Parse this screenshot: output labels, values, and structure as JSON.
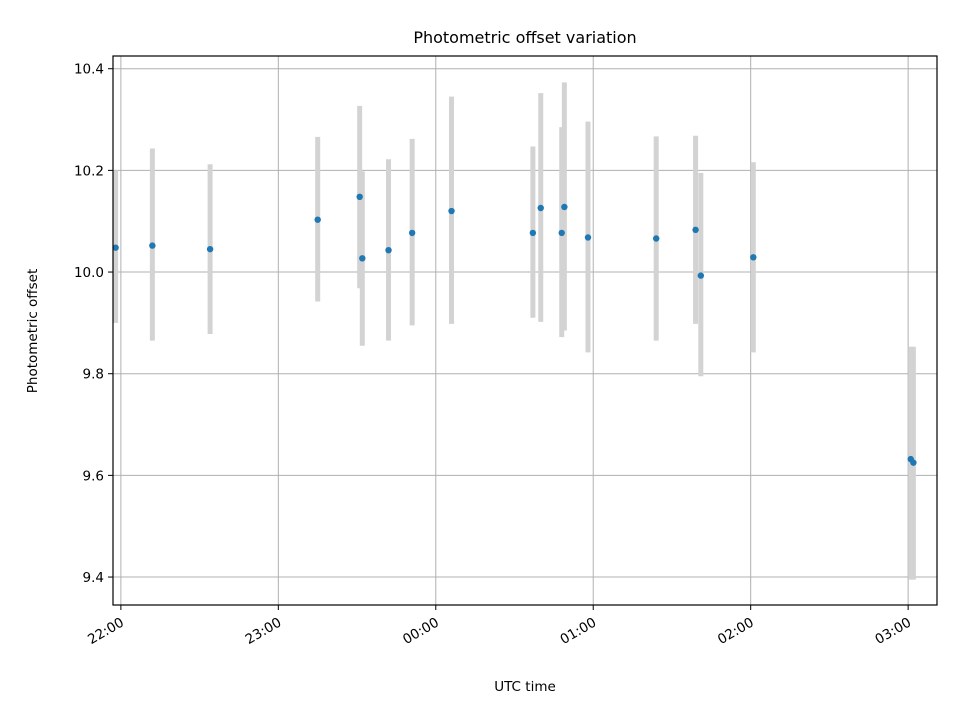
{
  "chart_data": {
    "type": "scatter",
    "title": "Photometric offset variation",
    "xlabel": "UTC time",
    "ylabel": "Photometric offset",
    "x_axis": {
      "min": "21:57",
      "max": "03:11",
      "ticks": [
        "22:00",
        "23:00",
        "00:00",
        "01:00",
        "02:00",
        "03:00"
      ]
    },
    "y_axis": {
      "min": 9.345,
      "max": 10.425,
      "ticks": [
        "9.4",
        "9.6",
        "9.8",
        "10.0",
        "10.2",
        "10.4"
      ]
    },
    "grid": true,
    "legend": "none",
    "colors": {
      "marker": "#1f77b4",
      "errorbar": "#d3d3d3",
      "grid": "#b0b0b0"
    },
    "points": [
      {
        "x": "21:58",
        "y": 10.048,
        "ylo": 9.9,
        "yhi": 10.2
      },
      {
        "x": "22:12",
        "y": 10.052,
        "ylo": 9.865,
        "yhi": 10.243
      },
      {
        "x": "22:34",
        "y": 10.045,
        "ylo": 9.878,
        "yhi": 10.212
      },
      {
        "x": "23:15",
        "y": 10.103,
        "ylo": 9.942,
        "yhi": 10.266
      },
      {
        "x": "23:31",
        "y": 10.148,
        "ylo": 9.968,
        "yhi": 10.327
      },
      {
        "x": "23:32",
        "y": 10.027,
        "ylo": 9.855,
        "yhi": 10.198
      },
      {
        "x": "23:42",
        "y": 10.043,
        "ylo": 9.865,
        "yhi": 10.222
      },
      {
        "x": "23:51",
        "y": 10.077,
        "ylo": 9.895,
        "yhi": 10.262
      },
      {
        "x": "00:06",
        "y": 10.12,
        "ylo": 9.898,
        "yhi": 10.345
      },
      {
        "x": "00:37",
        "y": 10.077,
        "ylo": 9.91,
        "yhi": 10.247
      },
      {
        "x": "00:40",
        "y": 10.126,
        "ylo": 9.902,
        "yhi": 10.352
      },
      {
        "x": "00:48",
        "y": 10.077,
        "ylo": 9.872,
        "yhi": 10.285
      },
      {
        "x": "00:49",
        "y": 10.128,
        "ylo": 9.885,
        "yhi": 10.373
      },
      {
        "x": "00:58",
        "y": 10.068,
        "ylo": 9.842,
        "yhi": 10.296
      },
      {
        "x": "01:24",
        "y": 10.066,
        "ylo": 9.865,
        "yhi": 10.267
      },
      {
        "x": "01:39",
        "y": 10.083,
        "ylo": 9.898,
        "yhi": 10.268
      },
      {
        "x": "01:41",
        "y": 9.993,
        "ylo": 9.795,
        "yhi": 10.195
      },
      {
        "x": "02:01",
        "y": 10.029,
        "ylo": 9.842,
        "yhi": 10.216
      },
      {
        "x": "03:01",
        "y": 9.632,
        "ylo": 9.395,
        "yhi": 9.853
      },
      {
        "x": "03:02",
        "y": 9.625,
        "ylo": 9.395,
        "yhi": 9.853
      }
    ]
  }
}
